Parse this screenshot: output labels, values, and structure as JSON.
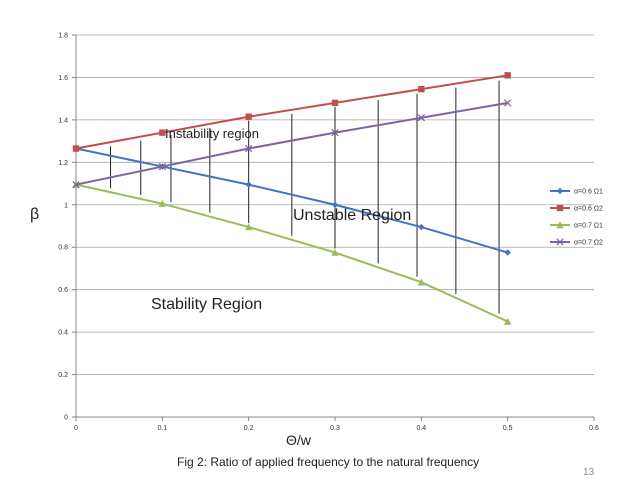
{
  "chart_data": {
    "type": "line",
    "x": [
      0,
      0.1,
      0.2,
      0.3,
      0.4,
      0.5
    ],
    "series": [
      {
        "name": "α=0.6 Ω1",
        "color": "#4472C4",
        "marker": "diamond",
        "values": [
          1.265,
          1.18,
          1.095,
          1.0,
          0.895,
          0.775
        ]
      },
      {
        "name": "α=0.6 Ω2",
        "color": "#C0504D",
        "marker": "square",
        "values": [
          1.265,
          1.34,
          1.415,
          1.48,
          1.545,
          1.61
        ]
      },
      {
        "name": "α=0.7 Ω1",
        "color": "#9BBB59",
        "marker": "triangle",
        "values": [
          1.095,
          1.005,
          0.895,
          0.775,
          0.635,
          0.45
        ]
      },
      {
        "name": "α=0.7 Ω2",
        "color": "#8064A2",
        "marker": "x",
        "values": [
          1.095,
          1.18,
          1.265,
          1.34,
          1.41,
          1.48
        ]
      }
    ],
    "xlim": [
      0,
      0.6
    ],
    "ylim": [
      0,
      1.8
    ],
    "xticks": [
      "0",
      "0.1",
      "0.2",
      "0.3",
      "0.4",
      "0.5",
      "0.6"
    ],
    "yticks": [
      "0",
      "0.2",
      "0.4",
      "0.6",
      "0.8",
      "1",
      "1.2",
      "1.4",
      "1.6",
      "1.8"
    ],
    "xlabel": "Θ/w",
    "ylabel": "β",
    "grid": "horizontal",
    "legend": "right",
    "hatch_x": [
      0.04,
      0.075,
      0.11,
      0.155,
      0.2,
      0.25,
      0.3,
      0.35,
      0.395,
      0.44,
      0.49
    ],
    "annotations": {
      "instability": "Instability region",
      "unstable": "Unstable Region",
      "stability": "Stability Region"
    }
  },
  "caption": "Fig 2: Ratio of applied frequency to the natural frequency",
  "page_number": "13"
}
